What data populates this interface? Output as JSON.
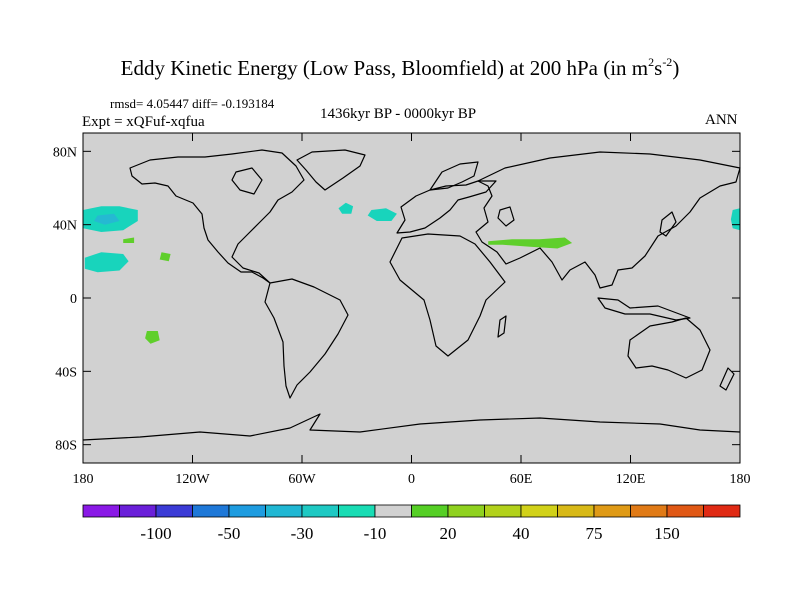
{
  "title": {
    "main": "Eddy Kinetic Energy (Low Pass, Bloomfield) at 200 hPa (in m",
    "exp1": "2",
    "mid": "s",
    "exp2": "-2",
    "end": ")"
  },
  "stats": "rmsd= 4.05447 diff= -0.193184",
  "experiment": "Expt = xQFuf-xqfua",
  "period": "1436kyr BP - 0000kyr BP",
  "season": "ANN",
  "map": {
    "background": "#d1d1d1",
    "coast": "#000000",
    "lat_ticks": [
      {
        "lat": 80,
        "label": "80N"
      },
      {
        "lat": 40,
        "label": "40N"
      },
      {
        "lat": 0,
        "label": "0"
      },
      {
        "lat": -40,
        "label": "40S"
      },
      {
        "lat": -80,
        "label": "80S"
      }
    ],
    "lon_ticks": [
      {
        "lon": -180,
        "label": "180"
      },
      {
        "lon": -120,
        "label": "120W"
      },
      {
        "lon": -60,
        "label": "60W"
      },
      {
        "lon": 0,
        "label": "0"
      },
      {
        "lon": 60,
        "label": "60E"
      },
      {
        "lon": 120,
        "label": "120E"
      },
      {
        "lon": 180,
        "label": "180"
      }
    ],
    "anomalies": [
      {
        "name": "north-pacific-cyan",
        "color": "#18d4bc",
        "coords": [
          [
            -180,
            48
          ],
          [
            -170,
            50
          ],
          [
            -160,
            50
          ],
          [
            -150,
            48
          ],
          [
            -150,
            42
          ],
          [
            -158,
            37
          ],
          [
            -170,
            36
          ],
          [
            -180,
            38
          ]
        ]
      },
      {
        "name": "north-pacific-core",
        "color": "#25b9d2",
        "coords": [
          [
            -172,
            45
          ],
          [
            -163,
            46
          ],
          [
            -160,
            42
          ],
          [
            -168,
            40
          ],
          [
            -174,
            42
          ]
        ]
      },
      {
        "name": "east-pacific-cyan",
        "color": "#18d4bc",
        "coords": [
          [
            -179,
            22
          ],
          [
            -170,
            25
          ],
          [
            -158,
            24
          ],
          [
            -155,
            20
          ],
          [
            -160,
            15
          ],
          [
            -172,
            14
          ],
          [
            -179,
            16
          ]
        ]
      },
      {
        "name": "north-atlantic-small",
        "color": "#18d4bc",
        "coords": [
          [
            -36,
            52
          ],
          [
            -32,
            50
          ],
          [
            -33,
            46
          ],
          [
            -38,
            46
          ],
          [
            -40,
            49
          ]
        ]
      },
      {
        "name": "north-atlantic-east",
        "color": "#18d4bc",
        "coords": [
          [
            -22,
            48
          ],
          [
            -14,
            49
          ],
          [
            -8,
            46
          ],
          [
            -11,
            42
          ],
          [
            -19,
            42
          ],
          [
            -24,
            45
          ]
        ]
      },
      {
        "name": "west-pacific-cyan",
        "color": "#18d4bc",
        "coords": [
          [
            176,
            48
          ],
          [
            180,
            49
          ],
          [
            180,
            37
          ],
          [
            176,
            38
          ],
          [
            175,
            43
          ]
        ]
      },
      {
        "name": "pacific-green-a",
        "color": "#5fcf2b",
        "coords": [
          [
            -158,
            32
          ],
          [
            -152,
            33
          ],
          [
            -152,
            30
          ],
          [
            -158,
            30
          ]
        ]
      },
      {
        "name": "pacific-green-b",
        "color": "#5fcf2b",
        "coords": [
          [
            -137,
            25
          ],
          [
            -132,
            24
          ],
          [
            -133,
            20
          ],
          [
            -138,
            21
          ]
        ]
      },
      {
        "name": "south-pacific-green",
        "color": "#5fcf2b",
        "coords": [
          [
            -145,
            -18
          ],
          [
            -139,
            -18
          ],
          [
            -138,
            -23
          ],
          [
            -143,
            -25
          ],
          [
            -146,
            -22
          ]
        ]
      },
      {
        "name": "middle-east-green",
        "color": "#5fcf2b",
        "coords": [
          [
            42,
            31
          ],
          [
            55,
            32
          ],
          [
            70,
            32
          ],
          [
            84,
            33
          ],
          [
            88,
            30
          ],
          [
            80,
            27
          ],
          [
            65,
            28
          ],
          [
            50,
            29
          ],
          [
            42,
            29
          ]
        ]
      }
    ]
  },
  "colorbar": {
    "colors": [
      "#8a19e6",
      "#6a1fd9",
      "#3b3bd6",
      "#1e78d8",
      "#1e9ce0",
      "#20b7d3",
      "#1ec9c3",
      "#19dcb4",
      "#d1d1d1",
      "#55cf25",
      "#8fd11f",
      "#b2d11b",
      "#d1d119",
      "#d8b917",
      "#df9a16",
      "#e07a16",
      "#e05815",
      "#e02a14"
    ],
    "labels": [
      {
        "index": 2,
        "text": "-100"
      },
      {
        "index": 4,
        "text": "-50"
      },
      {
        "index": 6,
        "text": "-30"
      },
      {
        "index": 8,
        "text": "-10"
      },
      {
        "index": 10,
        "text": "20"
      },
      {
        "index": 12,
        "text": "40"
      },
      {
        "index": 14,
        "text": "75"
      },
      {
        "index": 16,
        "text": "150"
      }
    ]
  }
}
